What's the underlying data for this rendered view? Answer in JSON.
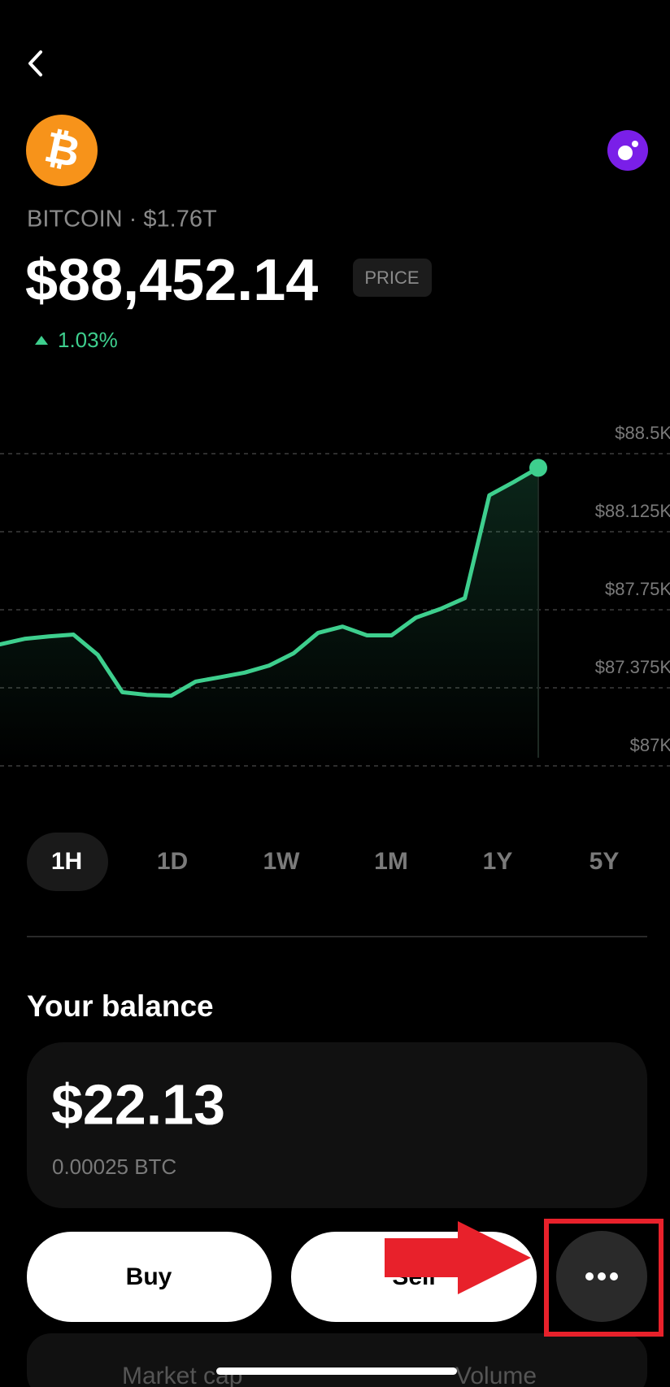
{
  "header": {
    "coin_symbol": "₿",
    "subtitle": "BITCOIN · $1.76T",
    "price": "$88,452.14",
    "badge": "PRICE",
    "change": "1.03%"
  },
  "price_chart": {
    "type": "line",
    "color": "#3ecf8e",
    "values": [
      87584,
      87610,
      87622,
      87631,
      87533,
      87354,
      87341,
      87337,
      87405,
      87426,
      87448,
      87482,
      87541,
      87639,
      87669,
      87627,
      87627,
      87712,
      87754,
      87806,
      88300,
      88364,
      88432
    ],
    "ylim": [
      87000,
      88500
    ],
    "yticks": [
      {
        "value": 88500,
        "label": "$88.5K"
      },
      {
        "value": 88125,
        "label": "$88.125K"
      },
      {
        "value": 87750,
        "label": "$87.75K"
      },
      {
        "value": 87375,
        "label": "$87.375K"
      },
      {
        "value": 87000,
        "label": "$87K"
      }
    ],
    "grid": true
  },
  "ranges": [
    "1H",
    "1D",
    "1W",
    "1M",
    "1Y",
    "5Y"
  ],
  "balance": {
    "title": "Your balance",
    "amount": "$22.13",
    "crypto": "0.00025 BTC"
  },
  "actions": [
    "Buy",
    "Sell"
  ],
  "stats": [
    "Market cap",
    "Volume"
  ]
}
